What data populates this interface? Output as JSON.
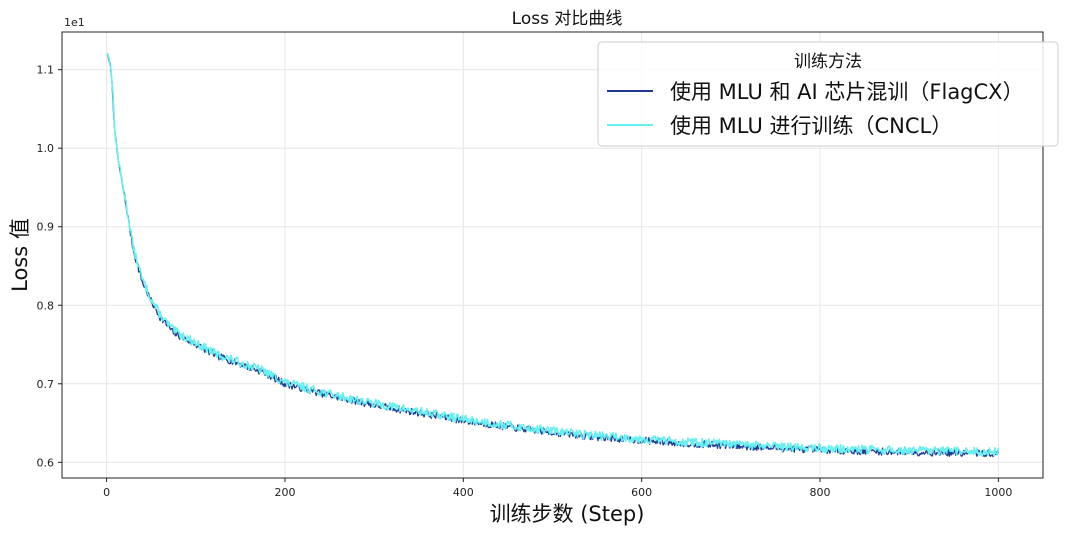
{
  "chart_data": {
    "type": "line",
    "title": "Loss 对比曲线",
    "xlabel": "训练步数 (Step)",
    "ylabel": "Loss 值",
    "y_offset_label": "1e1",
    "xlim": [
      -50,
      1050
    ],
    "ylim": [
      0.58,
      1.148
    ],
    "x_ticks": [
      0,
      200,
      400,
      600,
      800,
      1000
    ],
    "y_ticks": [
      0.6,
      0.7,
      0.8,
      0.9,
      1.0,
      1.1
    ],
    "x_tick_labels": [
      "0",
      "200",
      "400",
      "600",
      "800",
      "1000"
    ],
    "y_tick_labels": [
      "0.6",
      "0.7",
      "0.8",
      "0.9",
      "1.0",
      "1.1"
    ],
    "grid": true,
    "legend": {
      "title": "训练方法",
      "position": "top-right"
    },
    "series": [
      {
        "name": "使用 MLU 和 AI 芯片混训（FlagCX）",
        "color": "#1f3a93",
        "x": [
          1,
          5,
          10,
          15,
          20,
          25,
          30,
          40,
          50,
          60,
          75,
          100,
          125,
          150,
          175,
          200,
          250,
          300,
          350,
          400,
          450,
          500,
          550,
          600,
          650,
          700,
          750,
          800,
          850,
          900,
          950,
          1000
        ],
        "y": [
          1.12,
          1.1,
          1.01,
          0.97,
          0.94,
          0.905,
          0.87,
          0.83,
          0.805,
          0.785,
          0.765,
          0.75,
          0.735,
          0.725,
          0.715,
          0.7,
          0.685,
          0.673,
          0.663,
          0.653,
          0.645,
          0.638,
          0.632,
          0.628,
          0.624,
          0.621,
          0.618,
          0.616,
          0.614,
          0.613,
          0.612,
          0.611
        ]
      },
      {
        "name": "使用 MLU 进行训练（CNCL）",
        "color": "#66f0f0",
        "x": [
          1,
          5,
          10,
          15,
          20,
          25,
          30,
          40,
          50,
          60,
          75,
          100,
          125,
          150,
          175,
          200,
          250,
          300,
          350,
          400,
          450,
          500,
          550,
          600,
          650,
          700,
          750,
          800,
          850,
          900,
          950,
          1000
        ],
        "y": [
          1.121,
          1.105,
          1.012,
          0.972,
          0.942,
          0.908,
          0.873,
          0.833,
          0.808,
          0.788,
          0.768,
          0.752,
          0.737,
          0.727,
          0.717,
          0.702,
          0.687,
          0.675,
          0.665,
          0.655,
          0.647,
          0.64,
          0.634,
          0.63,
          0.626,
          0.623,
          0.62,
          0.618,
          0.616,
          0.615,
          0.614,
          0.613
        ]
      }
    ]
  }
}
